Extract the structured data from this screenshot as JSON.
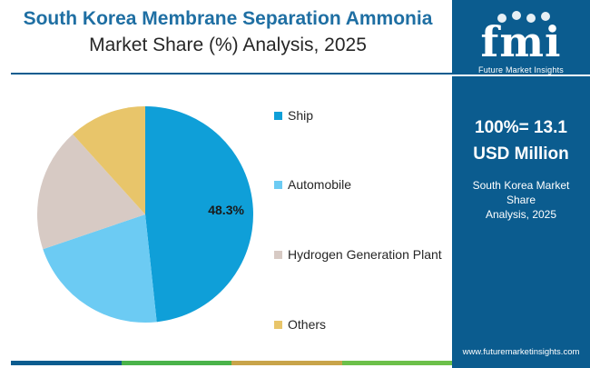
{
  "title": {
    "line1": "South Korea Membrane Separation Ammonia",
    "line2": "Market Share (%) Analysis, 2025"
  },
  "chart_data": {
    "type": "pie",
    "categories": [
      "Ship",
      "Automobile",
      "Hydrogen Generation Plant",
      "Others"
    ],
    "values": [
      48.3,
      21.5,
      18.5,
      11.7
    ],
    "colors": [
      "#0f9fd8",
      "#6ccbf3",
      "#d7cac4",
      "#e8c56a"
    ],
    "data_labels": [
      "48.3%",
      "",
      "",
      ""
    ],
    "legend_position": "right"
  },
  "sidebar": {
    "brand_mark": "fmi",
    "brand_name": "Future Market Insights",
    "total_line1": "100%= 13.1",
    "total_line2": "USD Million",
    "caption_line1": "South Korea Market Share",
    "caption_line2": "Analysis, 2025",
    "url": "www.futuremarketinsights.com"
  },
  "colors": {
    "sidebar_bg": "#0b5c8f",
    "title_accent": "#1f6fa3",
    "bottom_bar": [
      "#0b5c8f",
      "#4ab34a",
      "#c8a44a",
      "#6cc04a"
    ]
  },
  "icons": [
    "fmi-logo"
  ]
}
